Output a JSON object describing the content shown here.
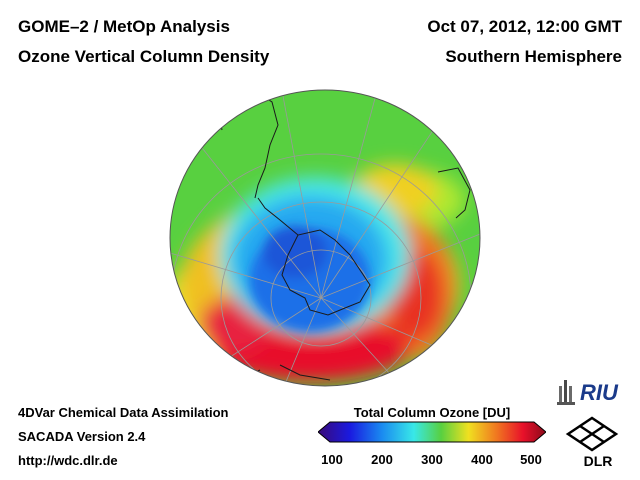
{
  "header": {
    "title_line_1": "GOME–2 / MetOp Analysis",
    "title_line_2": "Ozone Vertical Column Density",
    "date_time": "Oct 07, 2012, 12:00 GMT",
    "hemisphere": "Southern Hemisphere"
  },
  "footer": {
    "line_1": "4DVar Chemical Data Assimilation",
    "line_2": "SACADA Version 2.4",
    "line_3": "http://wdc.dlr.de"
  },
  "colorbar": {
    "title": "Total Column Ozone [DU]",
    "ticks": [
      "100",
      "200",
      "300",
      "400",
      "500"
    ],
    "min": 100,
    "max": 500
  },
  "logos": {
    "riu": "RIU",
    "dlr": "DLR"
  },
  "colors": {
    "ozone_hole": "#1e6fe8",
    "high_ozone": "#e8102a",
    "mid_ozone": "#58d040"
  }
}
